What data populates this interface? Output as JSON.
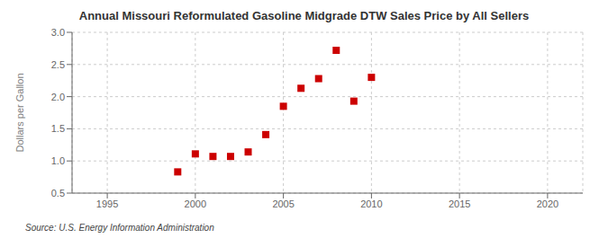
{
  "chart_data": {
    "type": "scatter",
    "title": "Annual Missouri Reformulated Gasoline Midgrade DTW Sales Price by All Sellers",
    "ylabel": "Dollars per Gallon",
    "annotations": [
      "Source: U.S. Energy Information Administration"
    ],
    "x": [
      1999,
      2000,
      2001,
      2002,
      2003,
      2004,
      2005,
      2006,
      2007,
      2008,
      2009,
      2010
    ],
    "values": [
      0.83,
      1.11,
      1.07,
      1.07,
      1.14,
      1.41,
      1.85,
      2.13,
      2.28,
      2.72,
      1.93,
      2.3
    ],
    "color": "#cc0000",
    "marker": "square",
    "xlim": [
      1993,
      2022
    ],
    "xticks": [
      1995,
      2000,
      2005,
      2010,
      2015,
      2020
    ],
    "ylim": [
      0.5,
      3.0
    ],
    "yticks": [
      0.5,
      {
        "value": 1.0,
        "label": "1.0"
      },
      1.5,
      {
        "value": 2.0,
        "label": "2.0"
      },
      2.5,
      {
        "value": 3.0,
        "label": "3.0"
      }
    ],
    "grid": true
  }
}
